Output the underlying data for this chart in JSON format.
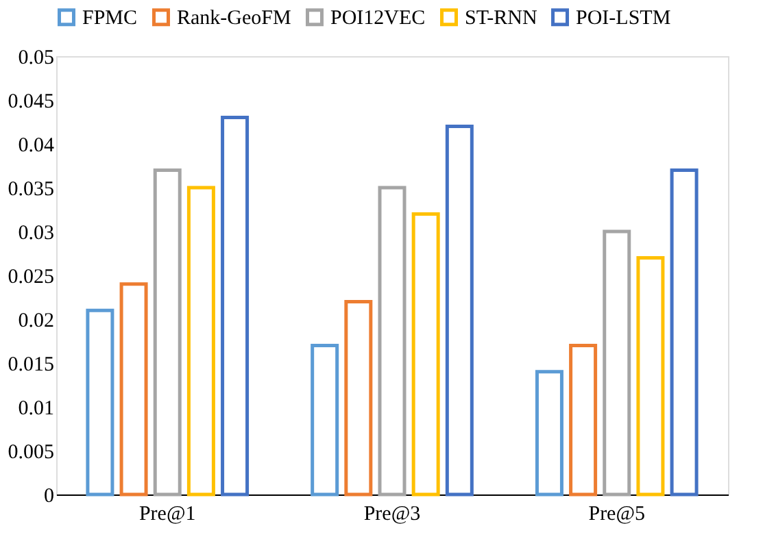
{
  "chart_data": {
    "type": "bar",
    "categories": [
      "Pre@1",
      "Pre@3",
      "Pre@5"
    ],
    "series": [
      {
        "name": "FPMC",
        "color": "#5b9bd5",
        "values": [
          0.021,
          0.017,
          0.014
        ]
      },
      {
        "name": "Rank-GeoFM",
        "color": "#ed7d31",
        "values": [
          0.024,
          0.022,
          0.017
        ]
      },
      {
        "name": "POI12VEC",
        "color": "#a5a5a5",
        "values": [
          0.037,
          0.035,
          0.03
        ]
      },
      {
        "name": "ST-RNN",
        "color": "#ffc000",
        "values": [
          0.035,
          0.032,
          0.027
        ]
      },
      {
        "name": "POI-LSTM",
        "color": "#4472c4",
        "values": [
          0.043,
          0.042,
          0.037
        ]
      }
    ],
    "ylim": [
      0,
      0.05
    ],
    "yticks": [
      0,
      0.005,
      0.01,
      0.015,
      0.02,
      0.025,
      0.03,
      0.035,
      0.04,
      0.045,
      0.05
    ],
    "grid": false,
    "legend": "top"
  }
}
